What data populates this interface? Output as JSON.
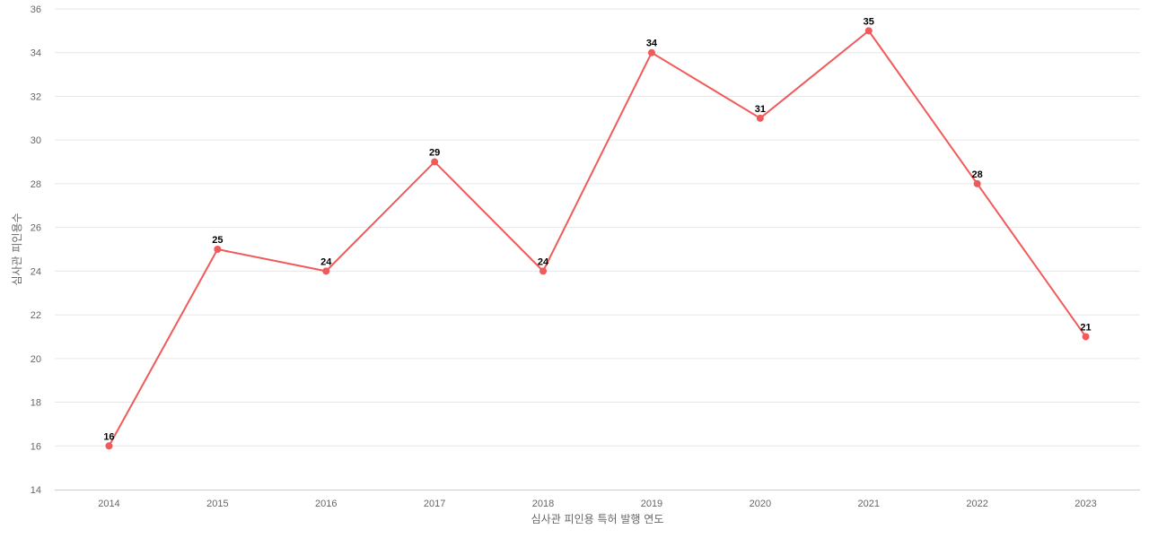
{
  "chart_data": {
    "type": "line",
    "title": "",
    "xlabel": "심사관 피인용 특허 발행 연도",
    "ylabel": "심사관 피인용수",
    "categories": [
      "2014",
      "2015",
      "2016",
      "2017",
      "2018",
      "2019",
      "2020",
      "2021",
      "2022",
      "2023"
    ],
    "series": [
      {
        "values": [
          16,
          25,
          24,
          29,
          24,
          34,
          31,
          35,
          28,
          21
        ],
        "color": "#f05a5a"
      }
    ],
    "ylim": [
      14,
      36
    ],
    "yticks": [
      14,
      16,
      18,
      20,
      22,
      24,
      26,
      28,
      30,
      32,
      34,
      36
    ],
    "grid": "horizontal",
    "legend": "none",
    "data_labels": true
  }
}
